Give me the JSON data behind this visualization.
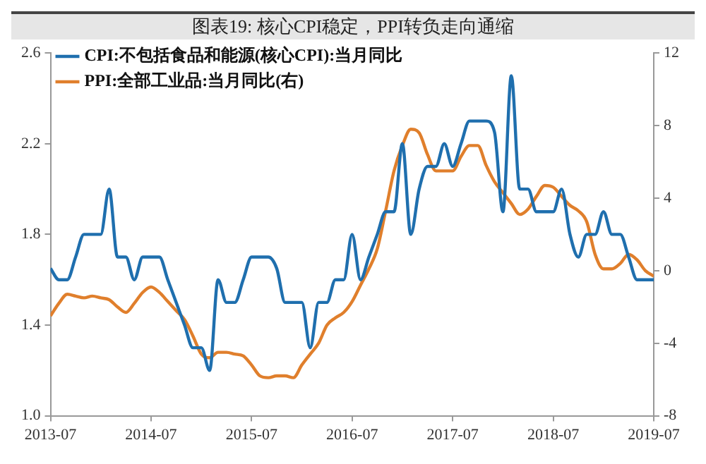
{
  "chart_data": {
    "type": "line",
    "title": "图表19:  核心CPI稳定，PPI转负走向通缩",
    "x": [
      "2013-07",
      "2013-08",
      "2013-09",
      "2013-10",
      "2013-11",
      "2013-12",
      "2014-01",
      "2014-02",
      "2014-03",
      "2014-04",
      "2014-05",
      "2014-06",
      "2014-07",
      "2014-08",
      "2014-09",
      "2014-10",
      "2014-11",
      "2014-12",
      "2015-01",
      "2015-02",
      "2015-03",
      "2015-04",
      "2015-05",
      "2015-06",
      "2015-07",
      "2015-08",
      "2015-09",
      "2015-10",
      "2015-11",
      "2015-12",
      "2016-01",
      "2016-02",
      "2016-03",
      "2016-04",
      "2016-05",
      "2016-06",
      "2016-07",
      "2016-08",
      "2016-09",
      "2016-10",
      "2016-11",
      "2016-12",
      "2017-01",
      "2017-02",
      "2017-03",
      "2017-04",
      "2017-05",
      "2017-06",
      "2017-07",
      "2017-08",
      "2017-09",
      "2017-10",
      "2017-11",
      "2017-12",
      "2018-01",
      "2018-02",
      "2018-03",
      "2018-04",
      "2018-05",
      "2018-06",
      "2018-07",
      "2018-08",
      "2018-09",
      "2018-10",
      "2018-11",
      "2018-12",
      "2019-01",
      "2019-02",
      "2019-03",
      "2019-04",
      "2019-05",
      "2019-06",
      "2019-07"
    ],
    "series": [
      {
        "name": "CPI:不包括食品和能源(核心CPI):当月同比",
        "color": "#1f6fae",
        "values": [
          1.65,
          1.6,
          1.6,
          1.7,
          1.8,
          1.8,
          1.8,
          2.0,
          1.7,
          1.7,
          1.6,
          1.7,
          1.7,
          1.7,
          1.6,
          1.5,
          1.4,
          1.3,
          1.3,
          1.2,
          1.6,
          1.5,
          1.5,
          1.6,
          1.7,
          1.7,
          1.7,
          1.65,
          1.5,
          1.5,
          1.5,
          1.3,
          1.5,
          1.5,
          1.6,
          1.6,
          1.8,
          1.6,
          1.7,
          1.8,
          1.9,
          1.9,
          2.2,
          1.8,
          2.0,
          2.1,
          2.1,
          2.2,
          2.1,
          2.2,
          2.3,
          2.3,
          2.3,
          2.25,
          1.9,
          2.5,
          2.0,
          2.0,
          1.9,
          1.9,
          1.9,
          2.0,
          1.8,
          1.7,
          1.8,
          1.8,
          1.9,
          1.8,
          1.8,
          1.7,
          1.6,
          1.6,
          1.6
        ]
      },
      {
        "name": "PPI:全部工业品:当月同比(右)",
        "color": "#e07f2c",
        "axis": "y2",
        "values": [
          -2.5,
          -1.8,
          -1.3,
          -1.4,
          -1.5,
          -1.4,
          -1.5,
          -1.6,
          -2.0,
          -2.3,
          -1.8,
          -1.2,
          -0.9,
          -1.2,
          -1.7,
          -2.2,
          -2.7,
          -3.6,
          -4.6,
          -4.8,
          -4.5,
          -4.5,
          -4.6,
          -4.7,
          -5.2,
          -5.8,
          -5.9,
          -5.8,
          -5.8,
          -5.9,
          -5.2,
          -4.6,
          -4.0,
          -3.0,
          -2.6,
          -2.3,
          -1.7,
          -0.8,
          0.1,
          1.2,
          3.3,
          5.5,
          6.9,
          7.8,
          7.6,
          6.4,
          5.5,
          5.5,
          5.5,
          6.3,
          6.9,
          6.9,
          5.8,
          4.9,
          4.3,
          3.7,
          3.1,
          3.4,
          4.1,
          4.7,
          4.6,
          4.1,
          3.6,
          3.3,
          2.7,
          0.9,
          0.1,
          0.1,
          0.4,
          0.9,
          0.6,
          0.0,
          -0.3
        ]
      }
    ],
    "xlim": [
      "2013-07",
      "2019-07"
    ],
    "xticks": [
      "2013-07",
      "2014-07",
      "2015-07",
      "2016-07",
      "2017-07",
      "2018-07",
      "2019-07"
    ],
    "ylim": [
      1.0,
      2.6
    ],
    "yticks": [
      {
        "value": 1,
        "label": "1.0"
      },
      1.4,
      1.8,
      2.2,
      2.6
    ],
    "y2lim": [
      -8,
      12
    ],
    "y2ticks": [
      -8,
      -4,
      0,
      4,
      8,
      12
    ],
    "legend": "top left",
    "grid": false,
    "marker": "none",
    "line_style": "solid"
  }
}
